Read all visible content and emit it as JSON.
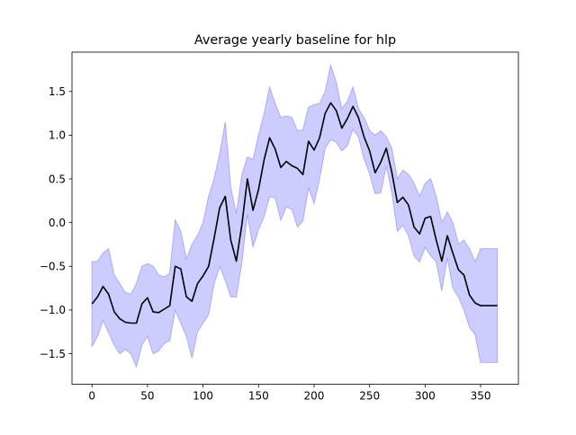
{
  "chart_data": {
    "type": "line",
    "title": "Average yearly baseline for hlp",
    "xlabel": "",
    "ylabel": "",
    "xlim": [
      -18,
      384
    ],
    "ylim": [
      -1.85,
      1.95
    ],
    "xticks": [
      0,
      50,
      100,
      150,
      200,
      250,
      300,
      350
    ],
    "xtick_labels": [
      "0",
      "50",
      "100",
      "150",
      "200",
      "250",
      "300",
      "350"
    ],
    "yticks": [
      -1.5,
      -1.0,
      -0.5,
      0.0,
      0.5,
      1.0,
      1.5
    ],
    "ytick_labels": [
      "−1.5",
      "−1.0",
      "−0.5",
      "0.0",
      "0.5",
      "1.0",
      "1.5"
    ],
    "grid": false,
    "colors": {
      "mean_line": "#000000",
      "band_fill": "#ccccff",
      "band_edge": "#aaaaff"
    },
    "series": [
      {
        "role": "mean",
        "x": [
          0,
          5,
          10,
          15,
          20,
          25,
          30,
          35,
          40,
          45,
          50,
          55,
          60,
          65,
          70,
          75,
          80,
          85,
          90,
          95,
          100,
          105,
          110,
          115,
          120,
          125,
          130,
          135,
          140,
          145,
          150,
          155,
          160,
          165,
          170,
          175,
          180,
          185,
          190,
          195,
          200,
          205,
          210,
          215,
          220,
          225,
          230,
          235,
          240,
          245,
          250,
          255,
          260,
          265,
          270,
          275,
          280,
          285,
          290,
          295,
          300,
          305,
          310,
          315,
          320,
          325,
          330,
          335,
          340,
          345,
          350,
          355,
          360,
          365
        ],
        "values": [
          -0.93,
          -0.85,
          -0.73,
          -0.82,
          -1.02,
          -1.1,
          -1.14,
          -1.15,
          -1.15,
          -0.93,
          -0.86,
          -1.02,
          -1.03,
          -0.99,
          -0.95,
          -0.5,
          -0.53,
          -0.85,
          -0.9,
          -0.7,
          -0.61,
          -0.5,
          -0.18,
          0.17,
          0.3,
          -0.2,
          -0.44,
          -0.02,
          0.5,
          0.14,
          0.38,
          0.72,
          0.97,
          0.84,
          0.63,
          0.7,
          0.65,
          0.62,
          0.55,
          0.93,
          0.83,
          0.97,
          1.25,
          1.37,
          1.28,
          1.08,
          1.19,
          1.33,
          1.2,
          0.98,
          0.82,
          0.57,
          0.69,
          0.85,
          0.58,
          0.23,
          0.29,
          0.2,
          -0.05,
          -0.13,
          0.05,
          0.07,
          -0.2,
          -0.44,
          -0.15,
          -0.35,
          -0.54,
          -0.6,
          -0.83,
          -0.92,
          -0.95,
          -0.95,
          -0.95,
          -0.95
        ]
      },
      {
        "role": "upper",
        "x": [
          0,
          5,
          10,
          15,
          20,
          25,
          30,
          35,
          40,
          45,
          50,
          55,
          60,
          65,
          70,
          75,
          80,
          85,
          90,
          95,
          100,
          105,
          110,
          115,
          120,
          125,
          130,
          135,
          140,
          145,
          150,
          155,
          160,
          165,
          170,
          175,
          180,
          185,
          190,
          195,
          200,
          205,
          210,
          215,
          220,
          225,
          230,
          235,
          240,
          245,
          250,
          255,
          260,
          265,
          270,
          275,
          280,
          285,
          290,
          295,
          300,
          305,
          310,
          315,
          320,
          325,
          330,
          335,
          340,
          345,
          350,
          355,
          360,
          365
        ],
        "values": [
          -0.45,
          -0.44,
          -0.35,
          -0.3,
          -0.6,
          -0.7,
          -0.8,
          -0.82,
          -0.7,
          -0.5,
          -0.47,
          -0.5,
          -0.6,
          -0.62,
          -0.58,
          0.03,
          -0.1,
          -0.42,
          -0.25,
          -0.15,
          0.0,
          0.3,
          0.5,
          0.79,
          1.15,
          0.4,
          0.1,
          0.55,
          0.75,
          0.72,
          1.0,
          1.25,
          1.55,
          1.36,
          1.2,
          1.22,
          1.2,
          1.05,
          1.06,
          1.32,
          1.35,
          1.36,
          1.5,
          1.8,
          1.6,
          1.3,
          1.39,
          1.55,
          1.3,
          1.2,
          1.05,
          1.0,
          1.05,
          0.98,
          0.85,
          0.5,
          0.6,
          0.55,
          0.45,
          0.3,
          0.45,
          0.5,
          0.3,
          0.0,
          0.12,
          0.0,
          -0.25,
          -0.2,
          -0.3,
          -0.45,
          -0.3,
          -0.3,
          -0.3,
          -0.3
        ]
      },
      {
        "role": "lower",
        "x": [
          0,
          5,
          10,
          15,
          20,
          25,
          30,
          35,
          40,
          45,
          50,
          55,
          60,
          65,
          70,
          75,
          80,
          85,
          90,
          95,
          100,
          105,
          110,
          115,
          120,
          125,
          130,
          135,
          140,
          145,
          150,
          155,
          160,
          165,
          170,
          175,
          180,
          185,
          190,
          195,
          200,
          205,
          210,
          215,
          220,
          225,
          230,
          235,
          240,
          245,
          250,
          255,
          260,
          265,
          270,
          275,
          280,
          285,
          290,
          295,
          300,
          305,
          310,
          315,
          320,
          325,
          330,
          335,
          340,
          345,
          350,
          355,
          360,
          365
        ],
        "values": [
          -1.42,
          -1.3,
          -1.12,
          -1.26,
          -1.4,
          -1.5,
          -1.45,
          -1.5,
          -1.65,
          -1.4,
          -1.3,
          -1.5,
          -1.47,
          -1.38,
          -1.35,
          -1.0,
          -1.15,
          -1.3,
          -1.55,
          -1.25,
          -1.15,
          -1.05,
          -0.7,
          -0.5,
          -0.66,
          -0.85,
          -0.85,
          -0.45,
          0.1,
          -0.28,
          -0.08,
          0.07,
          0.3,
          0.28,
          0.03,
          0.18,
          0.15,
          -0.05,
          0.02,
          0.4,
          0.22,
          0.5,
          0.85,
          0.95,
          0.92,
          0.82,
          0.88,
          1.07,
          0.98,
          0.73,
          0.56,
          0.33,
          0.34,
          0.65,
          0.35,
          -0.1,
          -0.03,
          -0.15,
          -0.38,
          -0.45,
          -0.28,
          -0.38,
          -0.45,
          -0.78,
          -0.4,
          -0.75,
          -0.85,
          -1.0,
          -1.2,
          -1.28,
          -1.6,
          -1.6,
          -1.6,
          -1.6
        ]
      }
    ]
  }
}
